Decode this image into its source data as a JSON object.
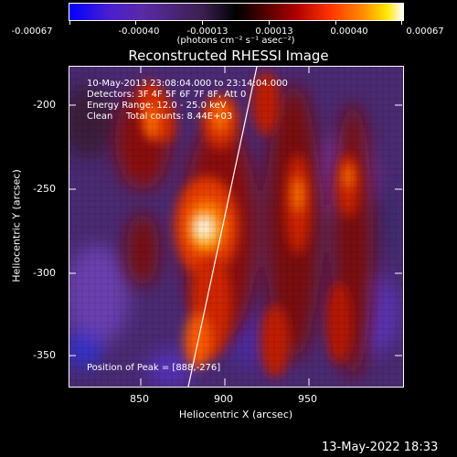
{
  "colorbar": {
    "ticks": [
      "-0.00067",
      "-0.00040",
      "-0.00013",
      "0.00013",
      "0.00040",
      "0.00067"
    ],
    "units": "(photons cm⁻² s⁻¹ asec⁻²)"
  },
  "title": "Reconstructed RHESSI Image",
  "info": {
    "time_range": "10-May-2013 23:08:04.000 to 23:14:04.000",
    "detectors": "Detectors: 3F 4F 5F 6F 7F 8F, Att 0",
    "energy": "Energy Range: 12.0 - 25.0 keV",
    "clean": "Clean",
    "total_counts": "Total counts: 8.44E+03",
    "peak": "Position of Peak = [888,-276]"
  },
  "axes": {
    "xlabel": "Heliocentric X (arcsec)",
    "ylabel": "Heliocentric Y (arcsec)",
    "xticks": [
      "850",
      "900",
      "950"
    ],
    "yticks": [
      "-200",
      "-250",
      "-300",
      "-350"
    ]
  },
  "timestamp": "13-May-2022 18:33"
}
